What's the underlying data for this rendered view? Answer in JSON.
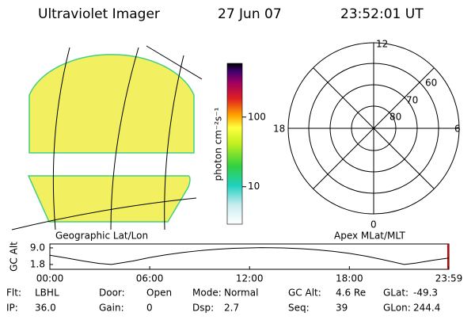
{
  "header": {
    "title": "Ultraviolet Imager",
    "date": "27 Jun 07",
    "time": "23:52:01 UT"
  },
  "geo_panel": {
    "label": "Geographic Lat/Lon"
  },
  "polar_panel": {
    "label": "Apex MLat/MLT",
    "mlt_labels": [
      "12",
      "6",
      "18",
      "0"
    ],
    "mlat_labels": [
      "60",
      "70",
      "80"
    ]
  },
  "colorbar": {
    "label": "photon cm⁻²s⁻¹",
    "log_scale": true,
    "ylim": [
      2.9,
      590
    ],
    "yticks": [
      10,
      100
    ]
  },
  "chart_data": {
    "type": "line",
    "ylabel": "GC Alt",
    "color": "#000000",
    "x": [
      0,
      1,
      2,
      3,
      3.7,
      5,
      6,
      7,
      8,
      9,
      10,
      11,
      12,
      12.7,
      14,
      15,
      16,
      17,
      18,
      19,
      20,
      21.3,
      22,
      23,
      23.98
    ],
    "values": [
      5.8,
      4.6,
      3.3,
      2.2,
      1.8,
      3.3,
      4.8,
      6.0,
      7.0,
      7.8,
      8.4,
      8.8,
      9.0,
      9.1,
      9.0,
      8.7,
      8.2,
      7.5,
      6.6,
      5.4,
      3.9,
      1.8,
      2.4,
      3.6,
      4.6
    ],
    "xlim": [
      0,
      23.98
    ],
    "ylim": [
      -0.3,
      10.7
    ],
    "xticks": [
      {
        "value": 0,
        "label": "00:00"
      },
      {
        "value": 6,
        "label": "06:00"
      },
      {
        "value": 12,
        "label": "12:00"
      },
      {
        "value": 18,
        "label": "18:00"
      },
      {
        "value": 23.98,
        "label": "23:59"
      }
    ],
    "yticks": [
      {
        "value": 9,
        "label": "9.0"
      },
      1.8
    ]
  },
  "footer": {
    "rows": [
      [
        {
          "label": "Flt:",
          "value": "LBHL"
        },
        {
          "label": "Door:",
          "value": "Open"
        },
        {
          "label": "Mode:",
          "value": "Normal"
        },
        {
          "label": "GC Alt:",
          "value": "4.6 Re"
        },
        {
          "label": "GLat:",
          "value": "-49.3"
        }
      ],
      [
        {
          "label": "IP:",
          "value": "36.0"
        },
        {
          "label": "Gain:",
          "value": "0"
        },
        {
          "label": "Dsp:",
          "value": "2.7"
        },
        {
          "label": "Seq:",
          "value": "39"
        },
        {
          "label": "GLon:",
          "value": "244.4"
        }
      ]
    ]
  }
}
